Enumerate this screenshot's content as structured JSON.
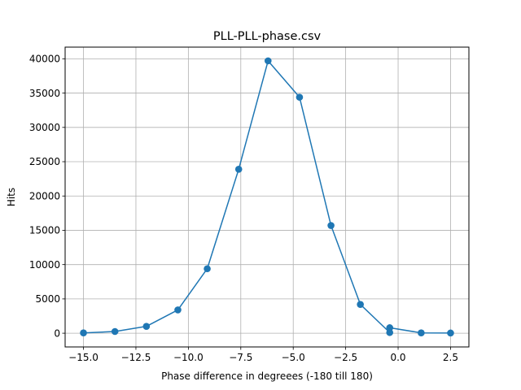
{
  "chart_data": {
    "type": "line",
    "title": "PLL-PLL-phase.csv",
    "xlabel": "Phase difference in degreees (-180 till 180)",
    "ylabel": "Hits",
    "xlim": [
      -15.875,
      3.375
    ],
    "ylim": [
      -2000,
      41700
    ],
    "xticks": [
      -15.0,
      -12.5,
      -10.0,
      -7.5,
      -5.0,
      -2.5,
      0.0,
      2.5
    ],
    "xtick_labels": [
      "−15.0",
      "−12.5",
      "−10.0",
      "−7.5",
      "−5.0",
      "−2.5",
      "0.0",
      "2.5"
    ],
    "yticks": [
      0,
      5000,
      10000,
      15000,
      20000,
      25000,
      30000,
      35000,
      40000
    ],
    "ytick_labels": [
      "0",
      "5000",
      "10000",
      "15000",
      "20000",
      "25000",
      "30000",
      "35000",
      "40000"
    ],
    "grid": true,
    "marker": "circle",
    "color": "#1f77b4",
    "series": [
      {
        "x": [
          -15.0,
          -13.5,
          -12.0,
          -10.5,
          -9.1,
          -7.6,
          -6.2,
          -4.7,
          -3.2,
          -1.8,
          -0.4,
          -0.4,
          1.1,
          2.5
        ],
        "y": [
          50,
          250,
          1000,
          3400,
          9400,
          23900,
          39700,
          34400,
          15700,
          4200,
          100,
          800,
          50,
          30
        ]
      }
    ]
  }
}
